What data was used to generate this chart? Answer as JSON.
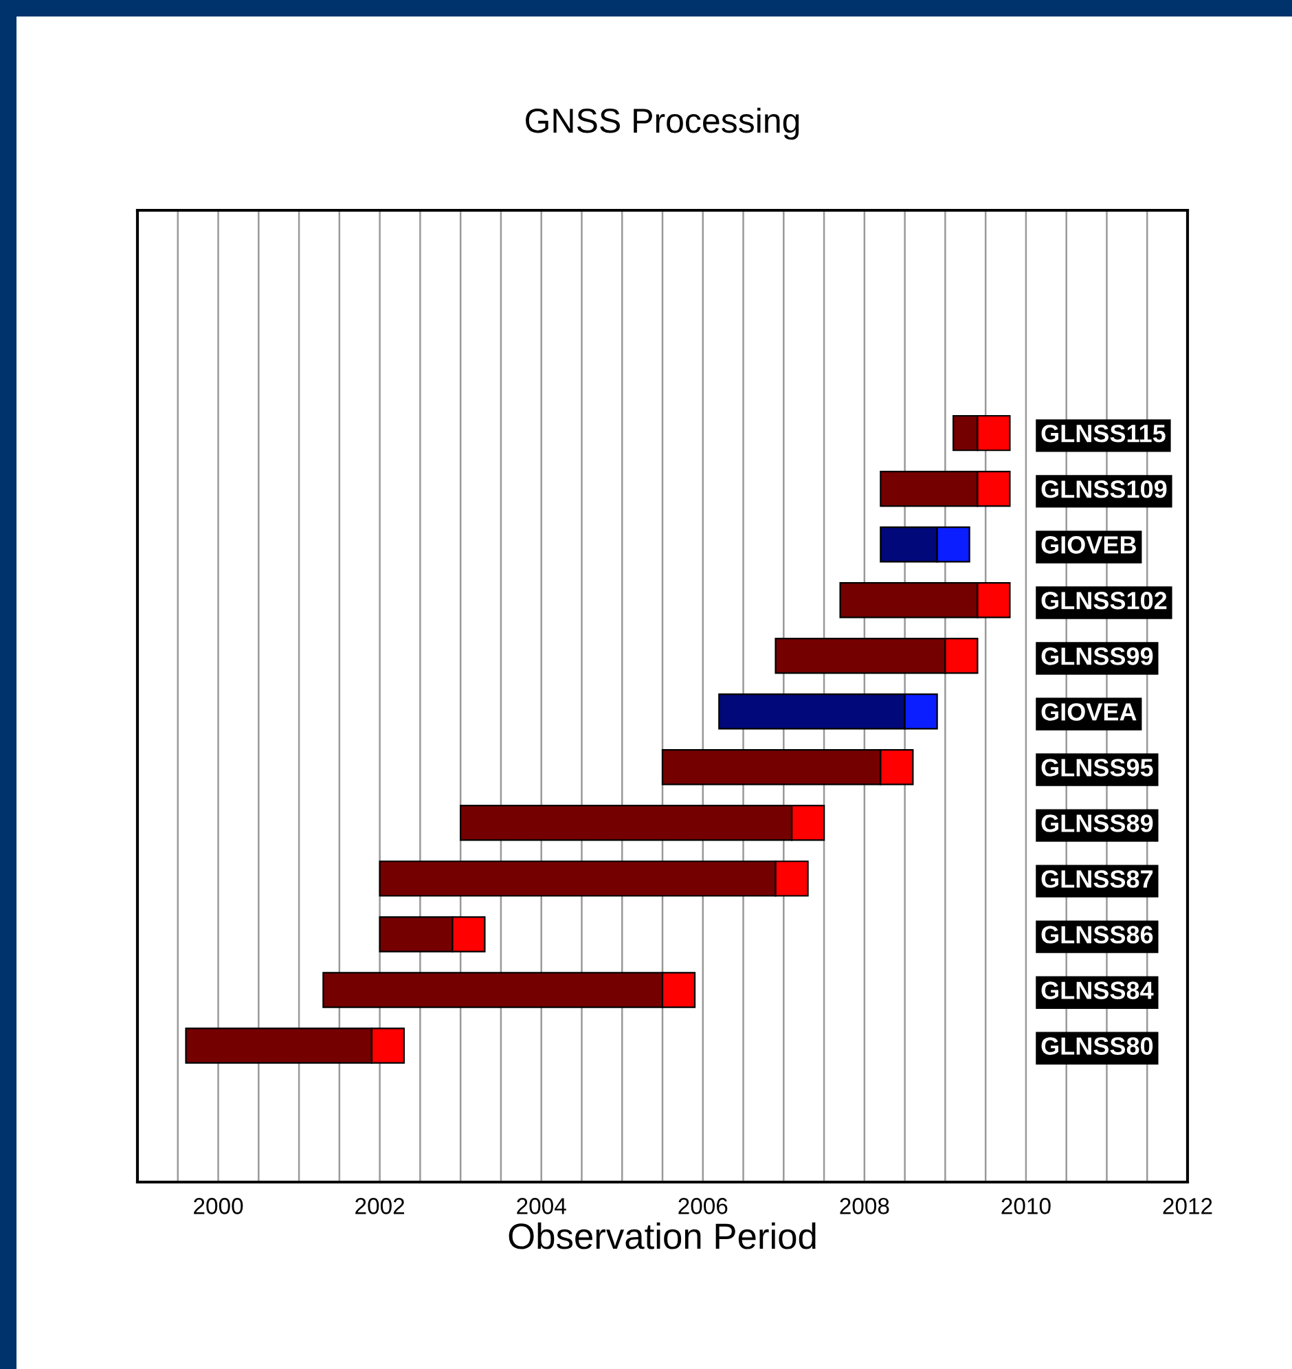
{
  "chart_data": {
    "type": "bar",
    "orientation": "horizontal",
    "title": "GNSS Processing",
    "xlabel": "Observation Period",
    "categories": [
      "GLNSS115",
      "GLNSS109",
      "GIOVEB",
      "GLNSS102",
      "GLNSS99",
      "GIOVEA",
      "GLNSS95",
      "GLNSS89",
      "GLNSS87",
      "GLNSS86",
      "GLNSS84",
      "GLNSS80"
    ],
    "series": [
      {
        "base": [
          2009.1,
          2008.2,
          2008.2,
          2007.7,
          2006.9,
          2006.2,
          2005.5,
          2003.0,
          2002.0,
          2002.0,
          2001.3,
          1999.6
        ],
        "colors": [
          "#750000",
          "#750000",
          "#00087a",
          "#750000",
          "#750000",
          "#00087a",
          "#750000",
          "#750000",
          "#750000",
          "#750000",
          "#750000",
          "#750000"
        ],
        "values": [
          0.3,
          1.2,
          0.7,
          1.7,
          2.1,
          2.3,
          2.7,
          4.1,
          4.9,
          0.9,
          4.2,
          2.3
        ]
      },
      {
        "base": [
          2009.4,
          2009.4,
          2008.9,
          2009.4,
          2009.0,
          2008.5,
          2008.2,
          2007.1,
          2006.9,
          2002.9,
          2005.5,
          2001.9
        ],
        "colors": [
          "#ff0000",
          "#ff0000",
          "#0a1eff",
          "#ff0000",
          "#ff0000",
          "#0a1eff",
          "#ff0000",
          "#ff0000",
          "#ff0000",
          "#ff0000",
          "#ff0000",
          "#ff0000"
        ],
        "values": [
          0.4,
          0.4,
          0.4,
          0.4,
          0.4,
          0.4,
          0.4,
          0.4,
          0.4,
          0.4,
          0.4,
          0.4
        ]
      }
    ],
    "xlim": [
      1999,
      2012
    ],
    "xticks": [
      {
        "value": 1999.5,
        "label": null
      },
      2000,
      {
        "value": 2000.5,
        "label": null
      },
      {
        "value": 2001,
        "label": null
      },
      {
        "value": 2001.5,
        "label": null
      },
      2002,
      {
        "value": 2002.5,
        "label": null
      },
      {
        "value": 2003,
        "label": null
      },
      {
        "value": 2003.5,
        "label": null
      },
      2004,
      {
        "value": 2004.5,
        "label": null
      },
      {
        "value": 2005,
        "label": null
      },
      {
        "value": 2005.5,
        "label": null
      },
      2006,
      {
        "value": 2006.5,
        "label": null
      },
      {
        "value": 2007,
        "label": null
      },
      {
        "value": 2007.5,
        "label": null
      },
      2008,
      {
        "value": 2008.5,
        "label": null
      },
      {
        "value": 2009,
        "label": null
      },
      {
        "value": 2009.5,
        "label": null
      },
      2010,
      {
        "value": 2010.5,
        "label": null
      },
      {
        "value": 2011,
        "label": null
      },
      {
        "value": 2011.5,
        "label": null
      },
      2012
    ],
    "grid": "x"
  }
}
